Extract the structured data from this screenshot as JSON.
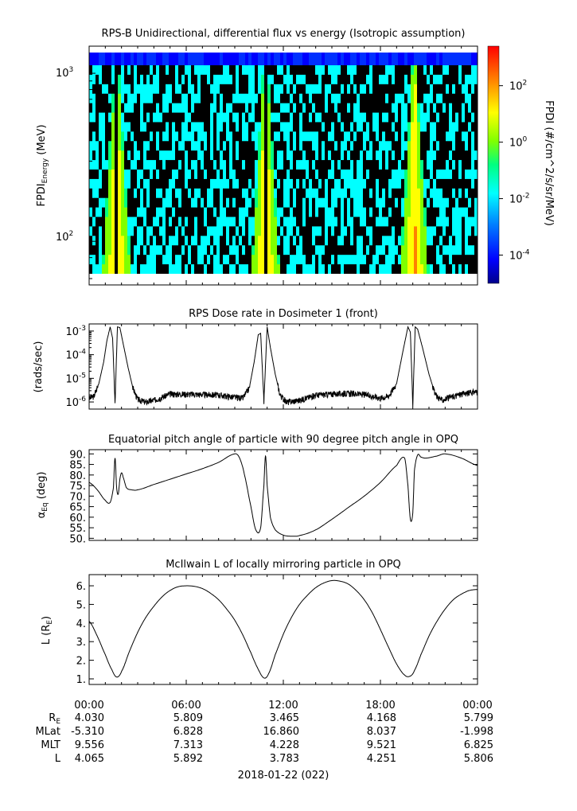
{
  "chart_data": [
    {
      "type": "heatmap",
      "title": "RPS-B  Unidirectional, differential flux vs energy (Isotropic assumption)",
      "ylabel_main": "FPDI",
      "ylabel_sub": "Energy",
      "ylabel_unit": " (MeV)",
      "yscale": "log",
      "ylim": [
        55,
        1450
      ],
      "ytick_labels": [
        {
          "base": "10",
          "exp": "3"
        },
        {
          "base": "10",
          "exp": "2"
        }
      ],
      "ytick_values": [
        1000,
        100
      ],
      "x_hours": [
        0,
        24
      ],
      "colorbar": {
        "label": "FPDI (#/cm^2/s/sr/MeV)",
        "scale": "log",
        "range_exp": [
          -5,
          3.4
        ],
        "tick_labels": [
          {
            "base": "10",
            "exp": "2"
          },
          {
            "base": "10",
            "exp": "0"
          },
          {
            "base": "10",
            "exp": "-2"
          },
          {
            "base": "10",
            "exp": "-4"
          }
        ],
        "tick_exps": [
          2,
          0,
          -2,
          -4
        ],
        "colors": [
          "#00008b",
          "#0000ff",
          "#0080ff",
          "#00ffff",
          "#00ff80",
          "#80ff00",
          "#ffff00",
          "#ff8000",
          "#ff0000"
        ]
      },
      "belt_crossings_hours": [
        1.6,
        10.8,
        20.0
      ],
      "data_gaps_hours": [
        1.6,
        10.8,
        20.0
      ]
    },
    {
      "type": "line",
      "title": "RPS  Dose rate in Dosimeter 1 (front)",
      "ylabel": "(rads/sec)",
      "yscale": "log",
      "ylim": [
        5e-07,
        0.002
      ],
      "ytick_labels": [
        {
          "base": "10",
          "exp": "-3"
        },
        {
          "base": "10",
          "exp": "-4"
        },
        {
          "base": "10",
          "exp": "-5"
        },
        {
          "base": "10",
          "exp": "-6"
        }
      ],
      "ytick_values": [
        0.001,
        0.0001,
        1e-05,
        1e-06
      ],
      "x": [
        0.0,
        0.3,
        0.6,
        0.9,
        1.1,
        1.3,
        1.45,
        1.6,
        1.75,
        1.9,
        2.1,
        2.4,
        2.7,
        3.0,
        3.5,
        4.0,
        5.0,
        6.0,
        7.0,
        8.0,
        9.0,
        9.5,
        9.9,
        10.2,
        10.45,
        10.6,
        10.8,
        11.0,
        11.2,
        11.5,
        11.8,
        12.2,
        13,
        14,
        15,
        16,
        17,
        18,
        18.5,
        19.0,
        19.4,
        19.7,
        19.85,
        20.0,
        20.15,
        20.3,
        20.6,
        21.0,
        21.4,
        21.8,
        22.2,
        23,
        24
      ],
      "values": [
        1.4e-06,
        1.8e-06,
        6e-06,
        5e-05,
        0.0004,
        0.0015,
        0.0005,
        1e-06,
        0.0015,
        0.0014,
        0.0003,
        3e-05,
        4e-06,
        1.3e-06,
        1e-06,
        1.2e-06,
        2.2e-06,
        2.2e-06,
        2.1e-06,
        2e-06,
        1.6e-06,
        1.5e-06,
        4e-06,
        5e-05,
        0.0007,
        0.0008,
        1e-06,
        0.0015,
        0.0002,
        1.5e-05,
        2e-06,
        1e-06,
        1.2e-06,
        2e-06,
        2.2e-06,
        2.3e-06,
        2.1e-06,
        1.5e-06,
        1.8e-06,
        6e-06,
        0.00015,
        0.0015,
        0.0009,
        8e-07,
        0.0015,
        0.0012,
        0.0002,
        1.5e-05,
        2e-06,
        1.2e-06,
        1.5e-06,
        2.2e-06,
        2.8e-06
      ]
    },
    {
      "type": "line",
      "title": "Equatorial pitch angle of particle with 90 degree pitch angle in OPQ",
      "ylabel": "α",
      "ylabel_sub": "Eq",
      "ylabel_unit": " (deg)",
      "ylim": [
        49,
        92
      ],
      "ytick_labels": [
        "90.",
        "85.",
        "80.",
        "75.",
        "70.",
        "65.",
        "60.",
        "55.",
        "50."
      ],
      "ytick_values": [
        90,
        85,
        80,
        75,
        70,
        65,
        60,
        55,
        50
      ],
      "x": [
        0.0,
        0.5,
        1.0,
        1.3,
        1.5,
        1.6,
        1.7,
        1.8,
        1.9,
        2.0,
        2.1,
        2.3,
        2.6,
        3.0,
        4.0,
        5.0,
        6.0,
        7.0,
        8.0,
        9.0,
        9.3,
        9.6,
        10.0,
        10.3,
        10.6,
        10.8,
        10.9,
        11.0,
        11.2,
        11.5,
        12.0,
        12.5,
        13.0,
        14.0,
        15.0,
        16.0,
        17.0,
        18.0,
        19.0,
        19.5,
        19.7,
        19.85,
        20.0,
        20.1,
        20.3,
        20.5,
        20.8,
        21.5,
        22.0,
        23.0,
        24.0
      ],
      "values": [
        76.5,
        73.0,
        68.0,
        67.0,
        74.0,
        88.0,
        74.0,
        71.0,
        78.0,
        81.0,
        79.0,
        74.0,
        73.0,
        73.0,
        75.5,
        78.0,
        80.5,
        83.0,
        86.0,
        90.0,
        88.0,
        80.0,
        65.0,
        54.0,
        55.0,
        75.0,
        89.0,
        75.0,
        60.0,
        54.0,
        51.5,
        51.0,
        51.3,
        54.0,
        59.0,
        64.5,
        70.0,
        76.5,
        84.5,
        88.0,
        75.0,
        59.0,
        62.0,
        82.0,
        89.5,
        88.5,
        88.0,
        89.0,
        90.0,
        88.0,
        84.5
      ]
    },
    {
      "type": "line",
      "title": "McIlwain L of locally mirroring particle in OPQ",
      "ylabel": "L (R",
      "ylabel_sub": "E",
      "ylabel_unit": ")",
      "ylim": [
        0.7,
        6.6
      ],
      "ytick_labels": [
        "6.",
        "5.",
        "4.",
        "3.",
        "2.",
        "1."
      ],
      "ytick_values": [
        6,
        5,
        4,
        3,
        2,
        1
      ],
      "x": [
        0.0,
        0.5,
        1.0,
        1.4,
        1.7,
        2.0,
        2.5,
        3.0,
        3.5,
        4.0,
        4.5,
        5.0,
        5.5,
        6.0,
        6.5,
        7.0,
        7.5,
        8.0,
        8.5,
        9.0,
        9.5,
        10.0,
        10.4,
        10.8,
        11.1,
        11.5,
        12.0,
        12.5,
        13.0,
        13.5,
        14.0,
        14.5,
        15.0,
        15.5,
        16.0,
        16.5,
        17.0,
        17.5,
        18.0,
        18.5,
        19.0,
        19.5,
        19.85,
        20.1,
        20.5,
        21.0,
        21.5,
        22.0,
        22.5,
        23.0,
        23.5,
        24.0
      ],
      "values": [
        4.1,
        3.3,
        2.3,
        1.5,
        1.1,
        1.4,
        2.5,
        3.5,
        4.3,
        4.9,
        5.4,
        5.75,
        5.95,
        6.0,
        5.97,
        5.85,
        5.6,
        5.25,
        4.75,
        4.15,
        3.35,
        2.4,
        1.6,
        1.05,
        1.3,
        2.3,
        3.4,
        4.3,
        5.0,
        5.5,
        5.9,
        6.15,
        6.28,
        6.25,
        6.1,
        5.75,
        5.25,
        4.55,
        3.65,
        2.7,
        1.8,
        1.2,
        1.15,
        1.45,
        2.3,
        3.3,
        4.1,
        4.75,
        5.25,
        5.55,
        5.75,
        5.8
      ]
    }
  ],
  "x_axis": {
    "tick_labels": [
      "00:00",
      "06:00",
      "12:00",
      "18:00",
      "00:00"
    ],
    "tick_hours": [
      0,
      6,
      12,
      18,
      24
    ],
    "date_label": "2018-01-22 (022)"
  },
  "ephemeris": {
    "row_labels": [
      {
        "main": "R",
        "sub": "E"
      },
      {
        "main": "MLat",
        "sub": ""
      },
      {
        "main": "MLT",
        "sub": ""
      },
      {
        "main": "L",
        "sub": ""
      }
    ],
    "rows": [
      [
        "4.030",
        "5.809",
        "3.465",
        "4.168",
        "5.799"
      ],
      [
        "-5.310",
        "6.828",
        "16.860",
        "8.037",
        "-1.998"
      ],
      [
        "9.556",
        "7.313",
        "4.228",
        "9.521",
        "6.825"
      ],
      [
        "4.065",
        "5.892",
        "3.783",
        "4.251",
        "5.806"
      ]
    ]
  },
  "colors": {
    "line": "#000000",
    "frame": "#000000",
    "background": "#ffffff"
  }
}
